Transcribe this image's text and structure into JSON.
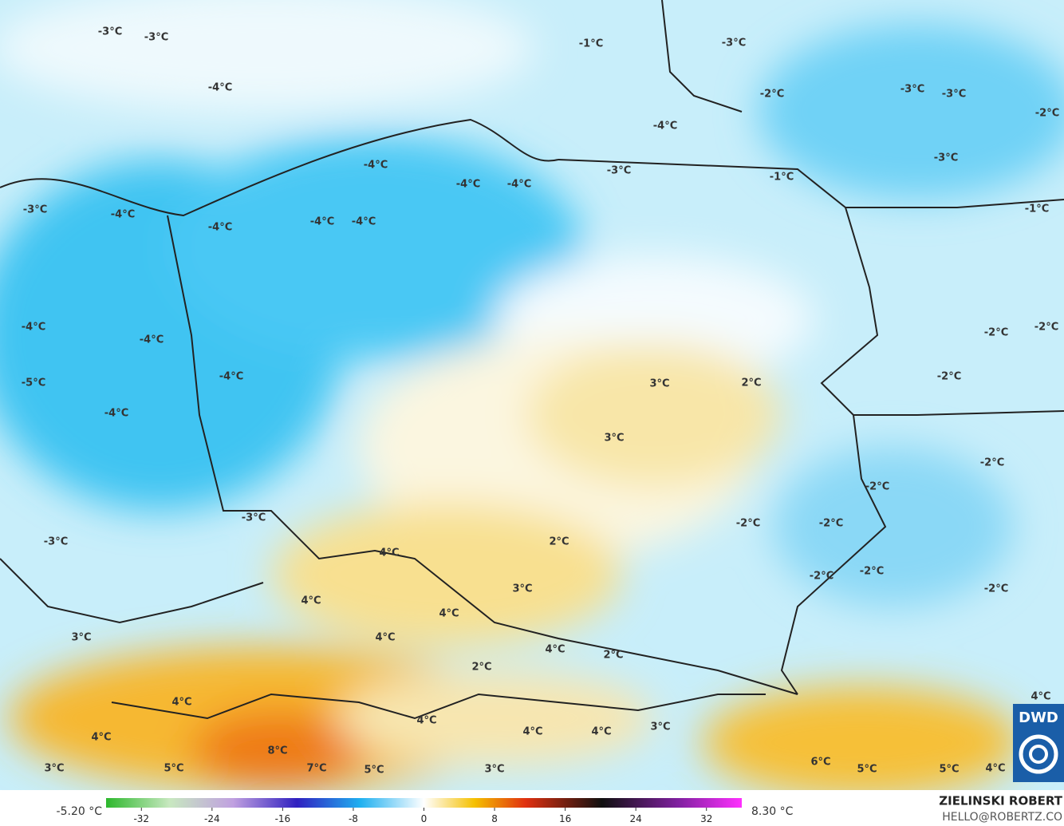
{
  "map": {
    "labels": [
      "-3°C",
      "-3°C",
      "-1°C",
      "-3°C",
      "-4°C",
      "-3°C",
      "-3°C",
      "-2°C",
      "-4°C",
      "-2°C",
      "-3°C",
      "-4°C",
      "-4°C",
      "-4°C",
      "-3°C",
      "-1°C",
      "-3°C",
      "-4°C",
      "-4°C",
      "-4°C",
      "-4°C",
      "-1°C",
      "-4°C",
      "-4°C",
      "-2°C",
      "-2°C",
      "-4°C",
      "-2°C",
      "-5°C",
      "3°C",
      "2°C",
      "-4°C",
      "3°C",
      "-2°C",
      "-2°C",
      "-3°C",
      "-2°C",
      "-2°C",
      "-3°C",
      "2°C",
      "4°C",
      "-2°C",
      "-2°C",
      "3°C",
      "-2°C",
      "4°C",
      "4°C",
      "3°C",
      "4°C",
      "4°C",
      "2°C",
      "2°C",
      "4°C",
      "4°C",
      "4°C",
      "4°C",
      "4°C",
      "4°C",
      "3°C",
      "8°C",
      "6°C",
      "5°C",
      "7°C",
      "5°C",
      "5°C",
      "5°C",
      "4°C",
      "3°C",
      "3°C"
    ],
    "logo": "DWD",
    "credit_name": "ZIELINSKI ROBERT",
    "credit_contact": "HELLO@ROBERTZ.CO"
  },
  "colorbar": {
    "min_label": "-5.20 °C",
    "max_label": "8.30 °C",
    "lim": [
      -36,
      36
    ],
    "ticks": [
      -32,
      -24,
      -16,
      -8,
      0,
      8,
      16,
      24,
      32
    ]
  }
}
